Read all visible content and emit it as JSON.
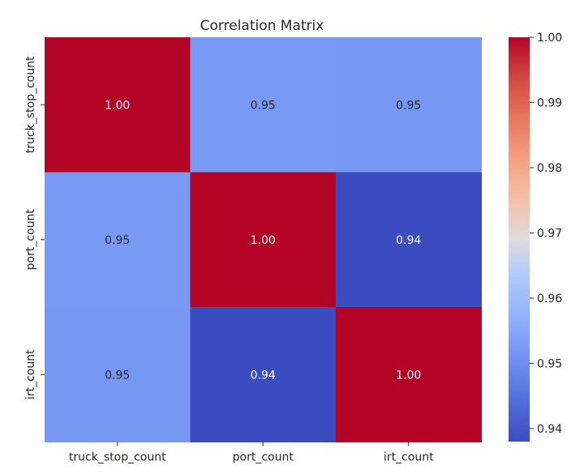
{
  "chart_data": {
    "type": "heatmap",
    "title": "Correlation Matrix",
    "xlabel": "",
    "ylabel": "",
    "row_labels": [
      "truck_stop_count",
      "port_count",
      "irt_count"
    ],
    "col_labels": [
      "truck_stop_count",
      "port_count",
      "irt_count"
    ],
    "values": [
      [
        1.0,
        0.9525,
        0.952
      ],
      [
        0.9525,
        1.0,
        0.938
      ],
      [
        0.952,
        0.938,
        1.0
      ]
    ],
    "cell_labels": [
      [
        "1.00",
        "0.95",
        "0.95"
      ],
      [
        "0.95",
        "1.00",
        "0.94"
      ],
      [
        "0.95",
        "0.94",
        "1.00"
      ]
    ],
    "colormap": "coolwarm",
    "colorbar": {
      "vmin": 0.938,
      "vmax": 1.0,
      "ticks": [
        0.94,
        0.95,
        0.96,
        0.97,
        0.98,
        0.99,
        1.0
      ],
      "tick_labels": [
        "0.94",
        "0.95",
        "0.96",
        "0.97",
        "0.98",
        "0.99",
        "1.00"
      ]
    }
  }
}
